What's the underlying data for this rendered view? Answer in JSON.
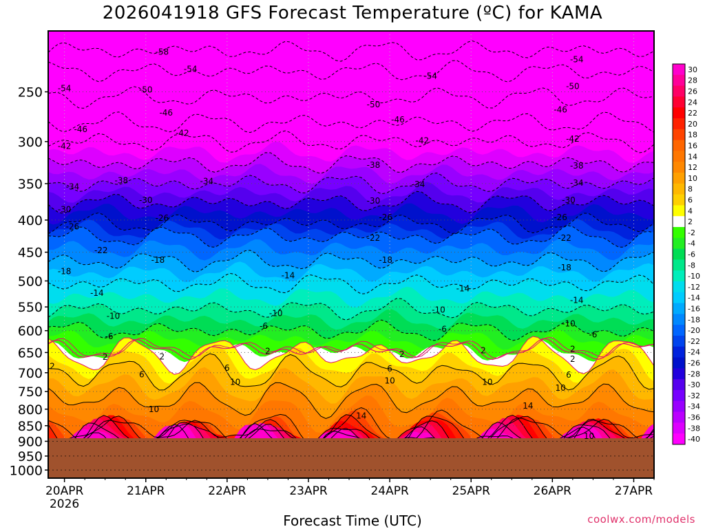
{
  "title": "2026041918 GFS Forecast Temperature (ºC) for KAMA",
  "credit": "coolwx.com/models",
  "chart_data": {
    "type": "heatmap",
    "title": "2026041918 GFS Forecast Temperature (ºC) for KAMA",
    "xlabel": "Forecast Time (UTC)",
    "ylabel": "",
    "x_ticks": [
      "20APR",
      "21APR",
      "22APR",
      "23APR",
      "24APR",
      "25APR",
      "26APR",
      "27APR"
    ],
    "x_sublabel": "2026",
    "x_range_days": [
      -0.2,
      7.25
    ],
    "y_ticks": [
      250,
      300,
      350,
      400,
      450,
      500,
      550,
      600,
      650,
      700,
      750,
      800,
      850,
      900,
      950,
      1000
    ],
    "y_range": [
      200,
      1030
    ],
    "y_scale": "log",
    "ground_pressure": 890,
    "grid": true,
    "colorbar_labels": [
      30,
      28,
      26,
      24,
      22,
      20,
      18,
      16,
      14,
      12,
      10,
      8,
      6,
      4,
      2,
      -2,
      -4,
      -6,
      -8,
      -10,
      -12,
      -14,
      -16,
      -18,
      -20,
      -22,
      -24,
      -26,
      -28,
      -30,
      -32,
      -34,
      -36,
      -38,
      -40
    ],
    "colorbar_colors": [
      "#ff00cc",
      "#ff0099",
      "#ff0066",
      "#ff0033",
      "#ff0000",
      "#ff2200",
      "#ff4400",
      "#ff6600",
      "#ff7700",
      "#ff8800",
      "#ffa000",
      "#ffb800",
      "#ffd000",
      "#ffff00",
      "#ffffff",
      "#33ff00",
      "#22ee22",
      "#00dd55",
      "#00e88a",
      "#00eebb",
      "#00ddee",
      "#00ccff",
      "#00aaff",
      "#0088ff",
      "#0066ff",
      "#0044ee",
      "#0022dd",
      "#0011cc",
      "#2200dd",
      "#5500ee",
      "#7700ff",
      "#9900ff",
      "#bb00ff",
      "#dd00ff",
      "#ff00ff"
    ],
    "contour_profile": [
      {
        "t": 30,
        "p": 905
      },
      {
        "t": 14,
        "p": 855
      },
      {
        "t": 10,
        "p": 770
      },
      {
        "t": 6,
        "p": 700
      },
      {
        "t": 2,
        "p": 655
      },
      {
        "t": -2,
        "p": 640
      },
      {
        "t": -6,
        "p": 600
      },
      {
        "t": -10,
        "p": 555
      },
      {
        "t": -14,
        "p": 505
      },
      {
        "t": -18,
        "p": 465
      },
      {
        "t": -22,
        "p": 425
      },
      {
        "t": -26,
        "p": 405
      },
      {
        "t": -30,
        "p": 375
      },
      {
        "t": -34,
        "p": 350
      },
      {
        "t": -38,
        "p": 325
      },
      {
        "t": -42,
        "p": 300
      },
      {
        "t": -46,
        "p": 280
      },
      {
        "t": -50,
        "p": 255
      },
      {
        "t": -54,
        "p": 232
      },
      {
        "t": -58,
        "p": 215
      },
      {
        "t": -60,
        "p": 200
      }
    ],
    "contour_labels": [
      {
        "text": "-58",
        "x": 1.2,
        "p": 216
      },
      {
        "text": "-54",
        "x": -0.0,
        "p": 247
      },
      {
        "text": "-54",
        "x": 1.55,
        "p": 230
      },
      {
        "text": "-54",
        "x": 4.5,
        "p": 236
      },
      {
        "text": "-54",
        "x": 6.3,
        "p": 222
      },
      {
        "text": "-50",
        "x": 1.0,
        "p": 248
      },
      {
        "text": "-50",
        "x": 3.8,
        "p": 262
      },
      {
        "text": "-50",
        "x": 6.25,
        "p": 245
      },
      {
        "text": "-46",
        "x": 0.2,
        "p": 287
      },
      {
        "text": "-46",
        "x": 1.25,
        "p": 270
      },
      {
        "text": "-46",
        "x": 4.1,
        "p": 277
      },
      {
        "text": "-46",
        "x": 6.1,
        "p": 267
      },
      {
        "text": "-42",
        "x": -0.0,
        "p": 305
      },
      {
        "text": "-42",
        "x": 1.45,
        "p": 291
      },
      {
        "text": "-42",
        "x": 4.4,
        "p": 299
      },
      {
        "text": "-42",
        "x": 6.25,
        "p": 297
      },
      {
        "text": "-38",
        "x": 0.7,
        "p": 346
      },
      {
        "text": "-38",
        "x": 3.8,
        "p": 327
      },
      {
        "text": "-38",
        "x": 6.3,
        "p": 328
      },
      {
        "text": "-34",
        "x": 0.1,
        "p": 354
      },
      {
        "text": "-34",
        "x": 1.75,
        "p": 347
      },
      {
        "text": "-34",
        "x": 4.35,
        "p": 351
      },
      {
        "text": "-34",
        "x": 6.3,
        "p": 349
      },
      {
        "text": "-30",
        "x": 0.0,
        "p": 385
      },
      {
        "text": "-30",
        "x": 1.0,
        "p": 372
      },
      {
        "text": "-30",
        "x": 3.8,
        "p": 373
      },
      {
        "text": "-30",
        "x": 6.2,
        "p": 372
      },
      {
        "text": "-26",
        "x": 0.1,
        "p": 410
      },
      {
        "text": "-26",
        "x": 1.2,
        "p": 397
      },
      {
        "text": "-26",
        "x": 3.95,
        "p": 396
      },
      {
        "text": "-26",
        "x": 6.1,
        "p": 396
      },
      {
        "text": "-22",
        "x": 0.45,
        "p": 447
      },
      {
        "text": "-22",
        "x": 3.8,
        "p": 427
      },
      {
        "text": "-22",
        "x": 6.15,
        "p": 427
      },
      {
        "text": "-18",
        "x": -0.0,
        "p": 483
      },
      {
        "text": "-18",
        "x": 1.15,
        "p": 463
      },
      {
        "text": "-18",
        "x": 3.95,
        "p": 463
      },
      {
        "text": "-18",
        "x": 6.15,
        "p": 476
      },
      {
        "text": "-14",
        "x": 0.4,
        "p": 523
      },
      {
        "text": "-14",
        "x": 2.75,
        "p": 490
      },
      {
        "text": "-14",
        "x": 4.9,
        "p": 514
      },
      {
        "text": "-14",
        "x": 6.3,
        "p": 537
      },
      {
        "text": "-10",
        "x": 0.6,
        "p": 569
      },
      {
        "text": "-10",
        "x": 2.6,
        "p": 563
      },
      {
        "text": "-10",
        "x": 4.6,
        "p": 556
      },
      {
        "text": "-10",
        "x": 6.2,
        "p": 585
      },
      {
        "text": "-6",
        "x": 0.55,
        "p": 613
      },
      {
        "text": "-6",
        "x": 2.45,
        "p": 590
      },
      {
        "text": "-6",
        "x": 4.65,
        "p": 597
      },
      {
        "text": "-6",
        "x": 6.5,
        "p": 609
      },
      {
        "text": "2",
        "x": 0.5,
        "p": 661
      },
      {
        "text": "2",
        "x": 2.5,
        "p": 647
      },
      {
        "text": "2",
        "x": 4.15,
        "p": 654
      },
      {
        "text": "2",
        "x": 5.15,
        "p": 645
      },
      {
        "text": "2",
        "x": 6.25,
        "p": 666
      },
      {
        "text": "2",
        "x": -0.15,
        "p": 684
      },
      {
        "text": "2",
        "x": 1.2,
        "p": 660
      },
      {
        "text": "2",
        "x": 6.25,
        "p": 642
      },
      {
        "text": "6",
        "x": 0.95,
        "p": 705
      },
      {
        "text": "6",
        "x": 2.0,
        "p": 688
      },
      {
        "text": "6",
        "x": 4.0,
        "p": 690
      },
      {
        "text": "6",
        "x": 6.2,
        "p": 706
      },
      {
        "text": "10",
        "x": 1.1,
        "p": 800
      },
      {
        "text": "10",
        "x": 2.1,
        "p": 725
      },
      {
        "text": "10",
        "x": 4.0,
        "p": 721
      },
      {
        "text": "10",
        "x": 5.2,
        "p": 725
      },
      {
        "text": "10",
        "x": 6.45,
        "p": 883
      },
      {
        "text": "10",
        "x": 6.1,
        "p": 740
      },
      {
        "text": "14",
        "x": 3.65,
        "p": 820
      },
      {
        "text": "14",
        "x": 5.7,
        "p": 790
      }
    ]
  }
}
